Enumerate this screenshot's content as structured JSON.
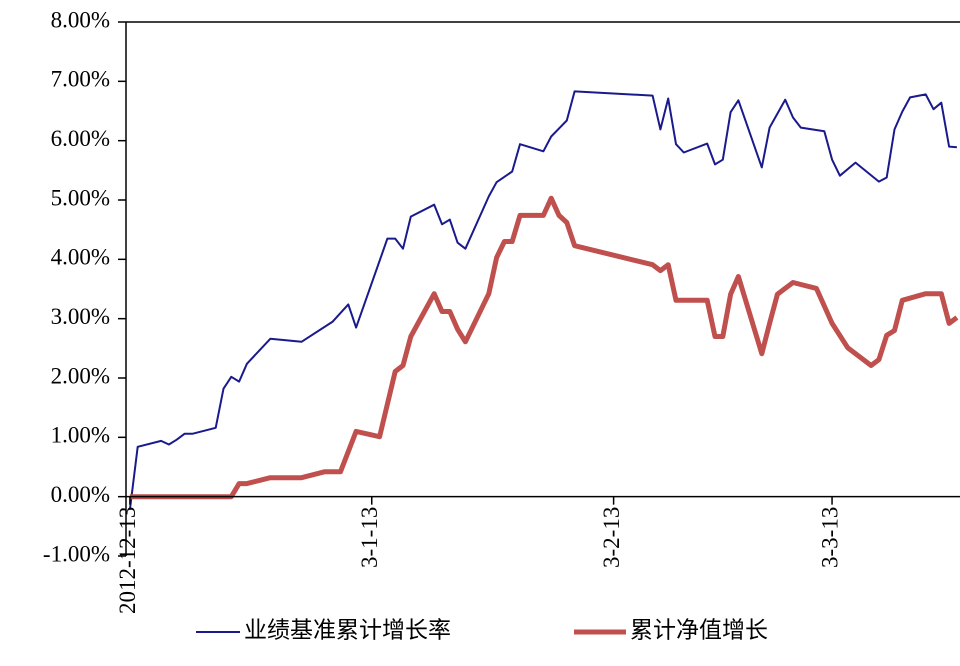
{
  "chart_data": {
    "type": "line",
    "xlim": [
      -0.5,
      106.4
    ],
    "xticks": [
      {
        "value": 0,
        "label": "2012-12-13"
      },
      {
        "value": 31,
        "label": "3-1-13"
      },
      {
        "value": 62,
        "label": "3-2-13"
      },
      {
        "value": 90,
        "label": "3-3-13"
      }
    ],
    "ylim": [
      -1,
      8
    ],
    "yticks": [
      {
        "value": 8,
        "label": "8.00%"
      },
      {
        "value": 7,
        "label": "7.00%"
      },
      {
        "value": 6,
        "label": "6.00%"
      },
      {
        "value": 5,
        "label": "5.00%"
      },
      {
        "value": 4,
        "label": "4.00%"
      },
      {
        "value": 3,
        "label": "3.00%"
      },
      {
        "value": 2,
        "label": "2.00%"
      },
      {
        "value": 1,
        "label": "1.00%"
      },
      {
        "value": 0,
        "label": "0.00%"
      },
      {
        "value": -1,
        "label": "-1.00%"
      }
    ],
    "legend": "bottom",
    "series": [
      {
        "name": "业绩基准累计增长率",
        "color": "#1a1a8c",
        "width": 2,
        "x": [
          0,
          1,
          4,
          5,
          6,
          7,
          8,
          11,
          12,
          13,
          14,
          15,
          18,
          22,
          26,
          28,
          29,
          33,
          34,
          35,
          36,
          39,
          40,
          41,
          42,
          43,
          46,
          47,
          49,
          50,
          53,
          54,
          56,
          57,
          67,
          68,
          69,
          70,
          71,
          74,
          75,
          76,
          77,
          78,
          81,
          82,
          84,
          85,
          86,
          89,
          90,
          91,
          93,
          96,
          97,
          98,
          99,
          100,
          102,
          103,
          104,
          105,
          106
        ],
        "values": [
          -0.22,
          0.84,
          0.94,
          0.88,
          0.96,
          1.06,
          1.06,
          1.16,
          1.82,
          2.02,
          1.94,
          2.24,
          2.66,
          2.61,
          2.95,
          3.24,
          2.85,
          4.35,
          4.35,
          4.18,
          4.72,
          4.92,
          4.59,
          4.67,
          4.28,
          4.18,
          5.06,
          5.3,
          5.48,
          5.94,
          5.82,
          6.07,
          6.34,
          6.83,
          6.76,
          6.19,
          6.71,
          5.94,
          5.8,
          5.95,
          5.6,
          5.68,
          6.48,
          6.68,
          5.55,
          6.22,
          6.69,
          6.39,
          6.22,
          6.16,
          5.68,
          5.41,
          5.63,
          5.31,
          5.38,
          6.19,
          6.49,
          6.73,
          6.78,
          6.53,
          6.64,
          5.9,
          5.89
        ]
      },
      {
        "name": "累计净值增长",
        "color": "#c0504d",
        "width": 5,
        "x": [
          0,
          13,
          14,
          15,
          18,
          22,
          25,
          27,
          29,
          32,
          34,
          35,
          36,
          39,
          40,
          41,
          42,
          43,
          46,
          47,
          48,
          49,
          50,
          53,
          54,
          55,
          56,
          57,
          67,
          68,
          69,
          70,
          74,
          75,
          76,
          77,
          78,
          81,
          82,
          83,
          85,
          88,
          90,
          92,
          95,
          96,
          97,
          98,
          99,
          102,
          104,
          105,
          106
        ],
        "values": [
          0,
          0,
          0.22,
          0.22,
          0.32,
          0.32,
          0.42,
          0.42,
          1.1,
          1.01,
          2.11,
          2.21,
          2.7,
          3.42,
          3.12,
          3.12,
          2.82,
          2.61,
          3.42,
          4.03,
          4.3,
          4.3,
          4.74,
          4.74,
          5.03,
          4.74,
          4.62,
          4.23,
          3.91,
          3.81,
          3.91,
          3.31,
          3.31,
          2.7,
          2.7,
          3.41,
          3.71,
          2.41,
          2.92,
          3.41,
          3.61,
          3.51,
          2.92,
          2.51,
          2.21,
          2.31,
          2.72,
          2.8,
          3.31,
          3.42,
          3.42,
          2.92,
          3.02
        ]
      }
    ]
  }
}
